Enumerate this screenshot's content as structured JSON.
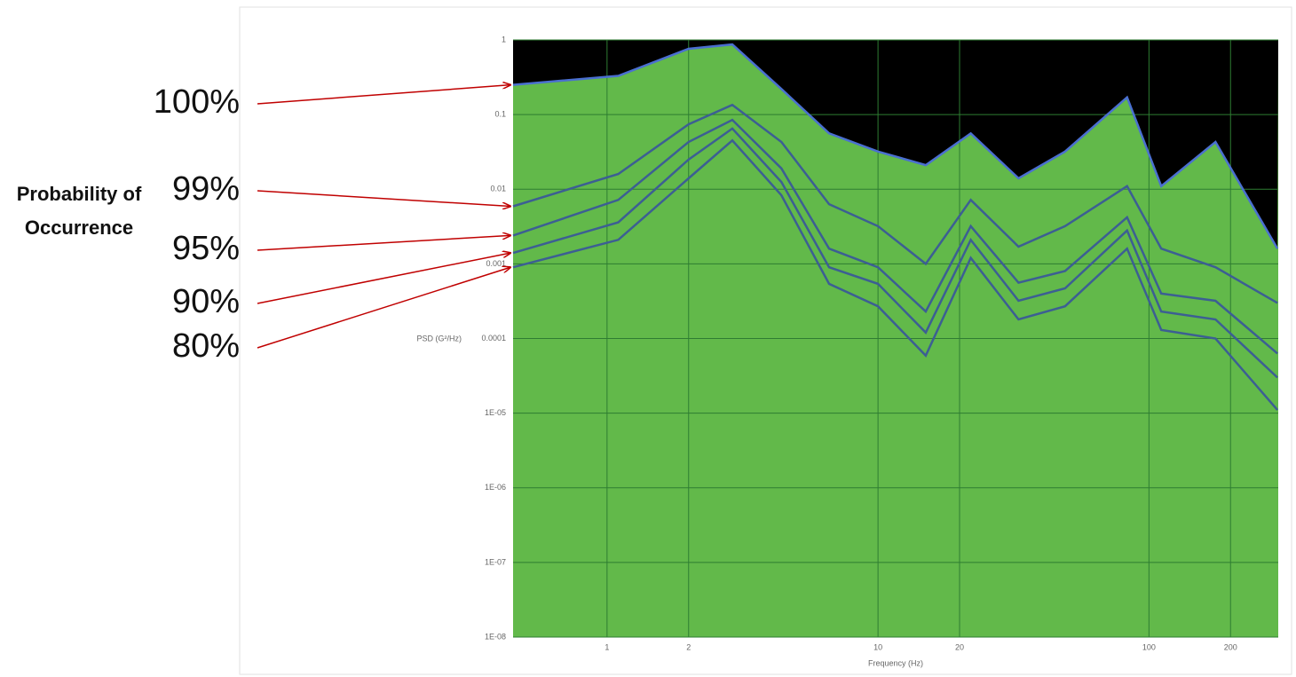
{
  "chart_data": {
    "type": "line",
    "annotation": "Probability of Occurrence",
    "xlabel": "Frequency (Hz)",
    "ylabel": "PSD (G²/Hz)",
    "xscale": "log",
    "yscale": "log",
    "grid": true,
    "background_color": "#62b94a",
    "above_max_color": "#000000",
    "xlim": [
      0.45,
      300
    ],
    "ylim": [
      1e-08,
      1
    ],
    "xticks": [
      1,
      2,
      10,
      20,
      100,
      200
    ],
    "yticks": [
      1,
      0.1,
      0.01,
      0.001,
      0.0001,
      {
        "value": 1e-05,
        "label": "1E-05"
      },
      {
        "value": 1e-06,
        "label": "1E-06"
      },
      {
        "value": 1e-07,
        "label": "1E-07"
      },
      {
        "value": 1e-08,
        "label": "1E-08"
      }
    ],
    "x": [
      0.45,
      1.1,
      2,
      2.9,
      4.4,
      6.6,
      10,
      15,
      22,
      33,
      49,
      83,
      111,
      176,
      298
    ],
    "series": [
      {
        "name": "100%",
        "color": "#4a6fd0",
        "values": [
          0.25,
          0.33,
          0.76,
          0.87,
          0.22,
          0.056,
          0.032,
          0.021,
          0.056,
          0.014,
          0.032,
          0.17,
          0.011,
          0.043,
          0.0016
        ]
      },
      {
        "name": "99%",
        "color": "#3c5f93",
        "values": [
          0.0059,
          0.016,
          0.074,
          0.135,
          0.043,
          0.0063,
          0.0032,
          0.001,
          0.0072,
          0.0017,
          0.0032,
          0.011,
          0.0016,
          0.0009,
          0.0003
        ]
      },
      {
        "name": "95%",
        "color": "#3c5f93",
        "values": [
          0.0024,
          0.0072,
          0.043,
          0.085,
          0.019,
          0.0016,
          0.0009,
          0.00023,
          0.0032,
          0.00056,
          0.0008,
          0.0042,
          0.0004,
          0.00032,
          6.3e-05
        ]
      },
      {
        "name": "90%",
        "color": "#3c5f93",
        "values": [
          0.0014,
          0.0036,
          0.025,
          0.065,
          0.0125,
          0.0009,
          0.00054,
          0.00012,
          0.0021,
          0.00032,
          0.00047,
          0.0028,
          0.00023,
          0.00018,
          3e-05
        ]
      },
      {
        "name": "80%",
        "color": "#3c5f93",
        "values": [
          0.0009,
          0.0021,
          0.014,
          0.045,
          0.0083,
          0.00054,
          0.00027,
          5.9e-05,
          0.0012,
          0.00018,
          0.00027,
          0.0016,
          0.00013,
          0.0001,
          1.1e-05
        ]
      }
    ]
  }
}
